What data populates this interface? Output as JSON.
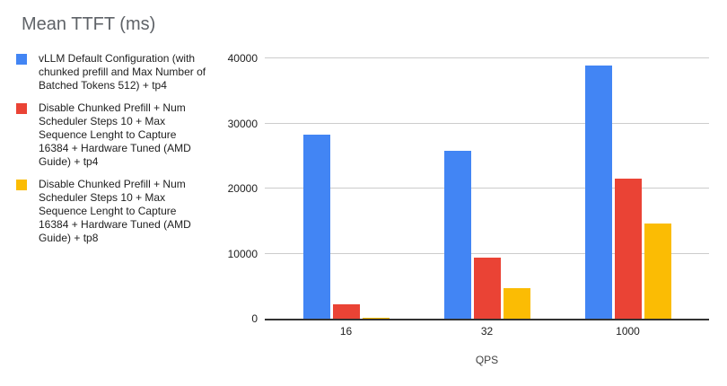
{
  "chart_data": {
    "type": "bar",
    "title": "Mean TTFT (ms)",
    "xlabel": "QPS",
    "ylabel": "",
    "categories": [
      "16",
      "32",
      "1000"
    ],
    "series": [
      {
        "name": "vLLM Default Configuration (with chunked prefill and Max Number of Batched Tokens 512) + tp4",
        "color": "#4285F4",
        "values": [
          28300,
          25800,
          38900
        ]
      },
      {
        "name": "Disable Chunked Prefill + Num Scheduler Steps 10 + Max Sequence Lenght to Capture 16384 + Hardware Tuned (AMD Guide) + tp4",
        "color": "#EA4335",
        "values": [
          2200,
          9400,
          21500
        ]
      },
      {
        "name": "Disable Chunked Prefill + Num Scheduler Steps 10 + Max Sequence Lenght to Capture 16384 + Hardware Tuned (AMD Guide) + tp8",
        "color": "#FBBC04",
        "values": [
          200,
          4700,
          14600
        ]
      }
    ],
    "ylim": [
      0,
      40000
    ],
    "yticks": [
      0,
      10000,
      20000,
      30000,
      40000
    ],
    "grid": true,
    "legend_position": "left",
    "colors": {
      "title_text": "#5f6368",
      "axis_text": "#212121",
      "gridline": "#cccccc",
      "baseline": "#333333",
      "background": "#ffffff"
    }
  }
}
